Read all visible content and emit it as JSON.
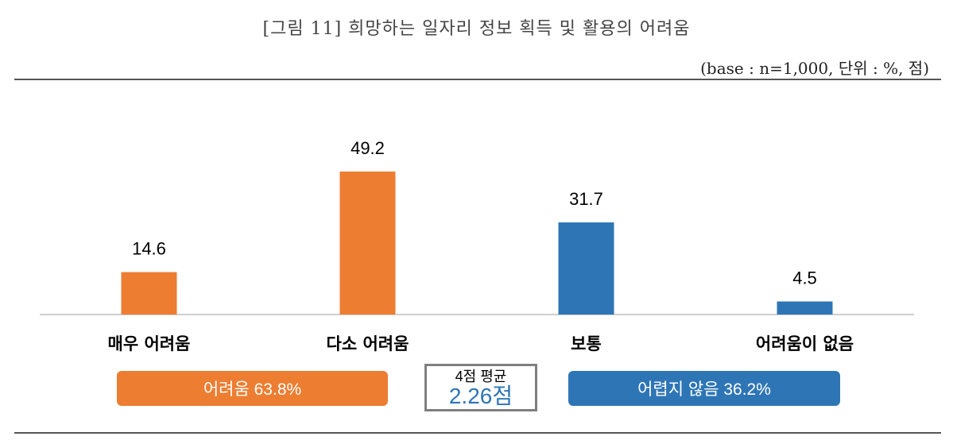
{
  "header": {
    "title": "[그림 11] 희망하는 일자리 정보 획득 및 활용의 어려움",
    "base_note": "(base : n=1,000, 단위 : %, 점)"
  },
  "chart_data": {
    "type": "bar",
    "categories": [
      "매우 어려움",
      "다소 어려움",
      "보통",
      "어려움이 없음"
    ],
    "values": [
      14.6,
      49.2,
      31.7,
      4.5
    ],
    "value_labels": [
      "14.6",
      "49.2",
      "31.7",
      "4.5"
    ],
    "bar_colors": [
      "#ed7d31",
      "#ed7d31",
      "#2e75b6",
      "#2e75b6"
    ],
    "ylim": [
      0,
      60
    ],
    "grid": false,
    "legend": "none"
  },
  "summary": {
    "difficult_label": "어려움 63.8%",
    "not_difficult_label": "어렵지 않음 36.2%",
    "average_title": "4점 평균",
    "average_value": "2.26점"
  },
  "colors": {
    "orange": "#ed7d31",
    "blue": "#2e75b6",
    "rule": "#555555"
  }
}
